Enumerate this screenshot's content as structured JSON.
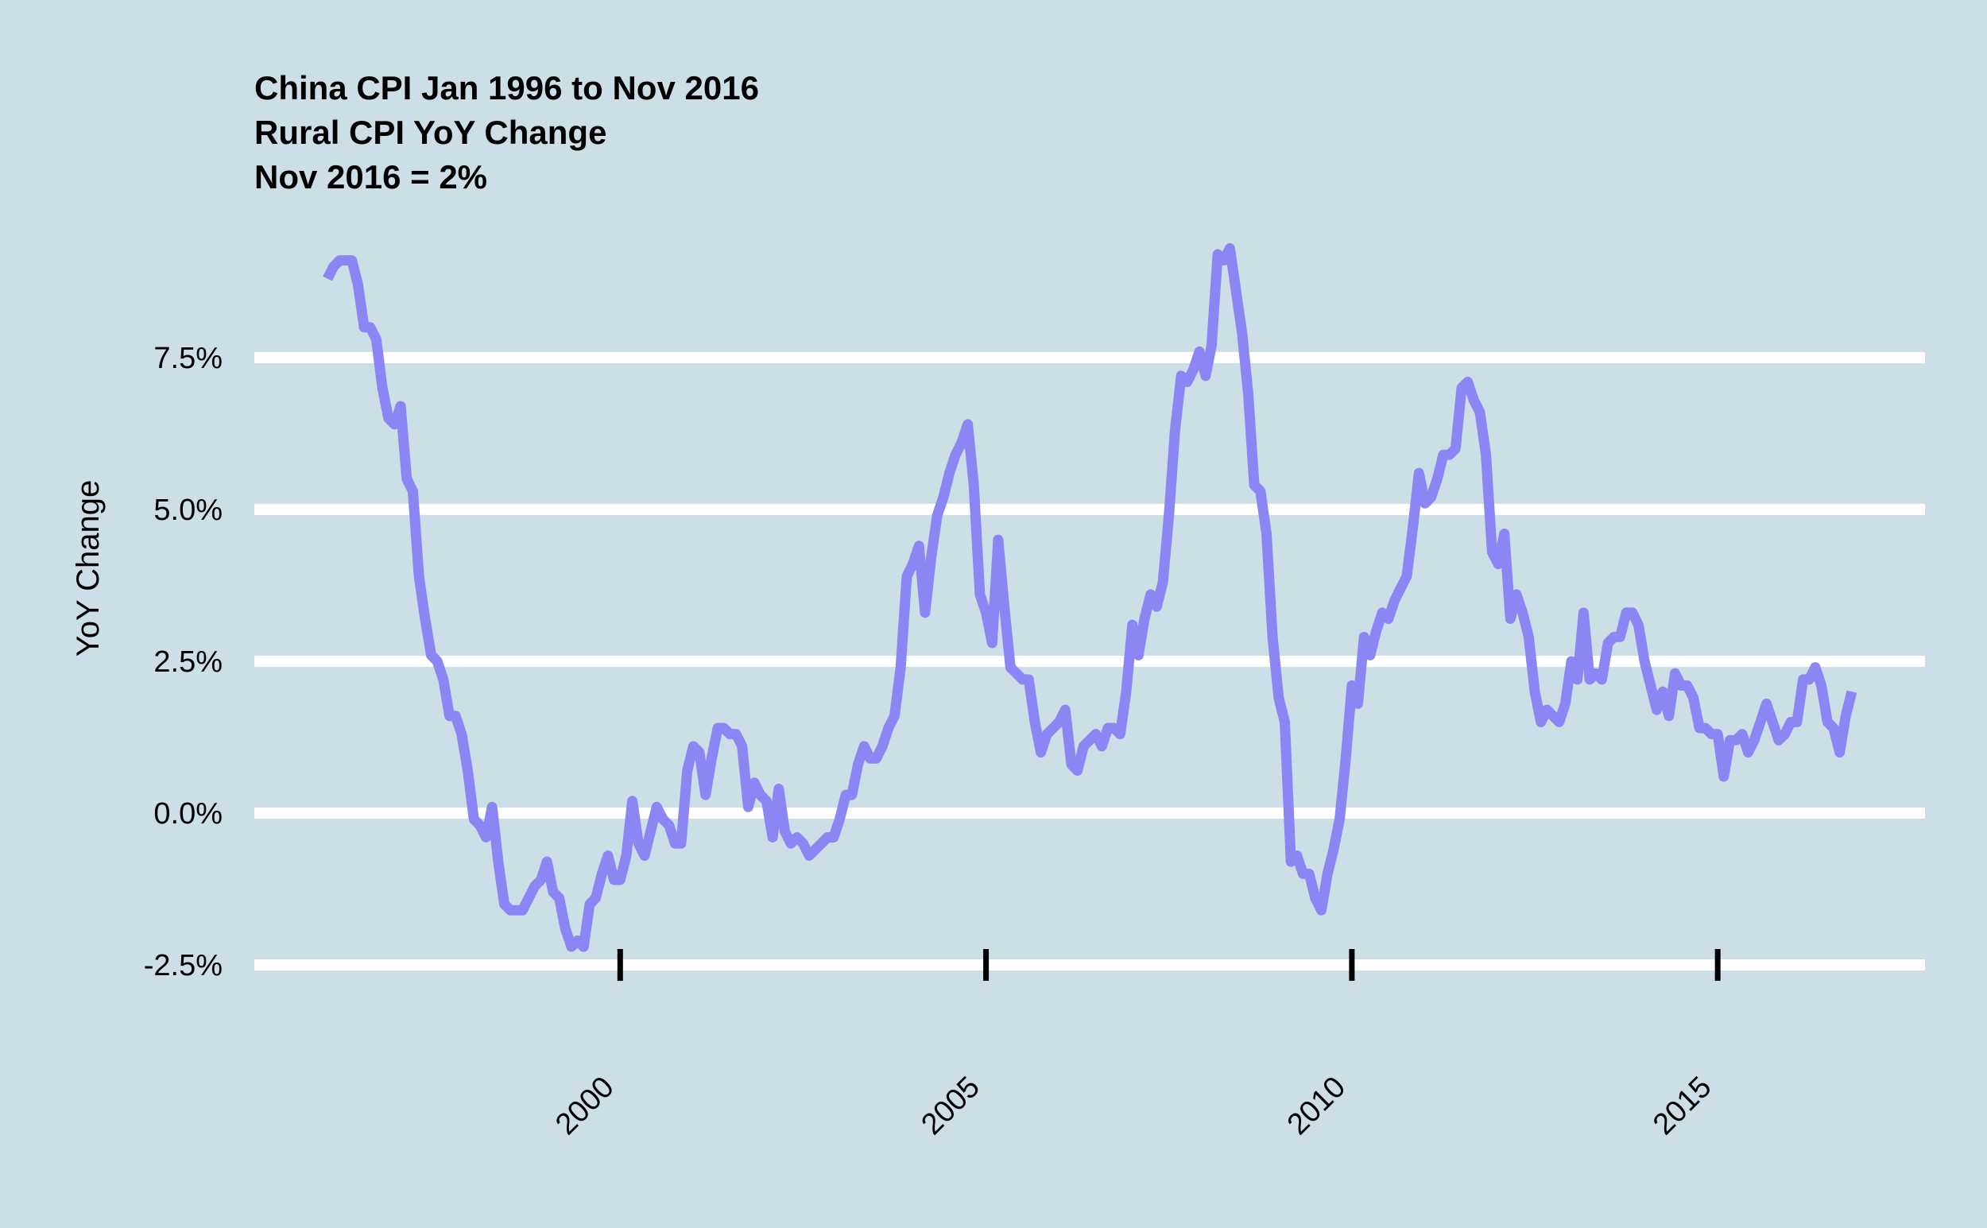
{
  "chart_data": {
    "type": "line",
    "title_lines": [
      "China CPI Jan 1996 to Nov 2016",
      "Rural CPI YoY Change",
      "Nov 2016 = 2%"
    ],
    "xlabel": "",
    "ylabel": "YoY Change",
    "x_ticks": [
      "2000",
      "2005",
      "2010",
      "2015"
    ],
    "y_ticks": [
      "-2.5%",
      "0.0%",
      "2.5%",
      "5.0%",
      "7.5%"
    ],
    "y_tick_values": [
      -2.5,
      0,
      2.5,
      5,
      7.5
    ],
    "xlim": [
      "1995-01",
      "2017-11"
    ],
    "ylim": [
      -2.5,
      9.2
    ],
    "grid": "horizontal",
    "colors": {
      "background": "#cddfe6",
      "line": "#8c86f5",
      "grid": "#ffffff",
      "tick_mark": "#000000"
    },
    "series": [
      {
        "points": [
          [
            "1996-01",
            8.8
          ],
          [
            "1996-02",
            9.0
          ],
          [
            "1996-03",
            9.1
          ],
          [
            "1996-05",
            9.1
          ],
          [
            "1996-06",
            8.7
          ],
          [
            "1996-07",
            8.0
          ],
          [
            "1996-08",
            8.0
          ],
          [
            "1996-09",
            7.8
          ],
          [
            "1996-10",
            7.0
          ],
          [
            "1996-11",
            6.5
          ],
          [
            "1996-12",
            6.4
          ],
          [
            "1997-01",
            6.7
          ],
          [
            "1997-02",
            5.5
          ],
          [
            "1997-03",
            5.3
          ],
          [
            "1997-04",
            3.9
          ],
          [
            "1997-05",
            3.2
          ],
          [
            "1997-06",
            2.6
          ],
          [
            "1997-07",
            2.5
          ],
          [
            "1997-08",
            2.2
          ],
          [
            "1997-09",
            1.6
          ],
          [
            "1997-10",
            1.6
          ],
          [
            "1997-11",
            1.3
          ],
          [
            "1997-12",
            0.7
          ],
          [
            "1998-01",
            -0.1
          ],
          [
            "1998-02",
            -0.2
          ],
          [
            "1998-03",
            -0.4
          ],
          [
            "1998-04",
            0.1
          ],
          [
            "1998-05",
            -0.8
          ],
          [
            "1998-06",
            -1.5
          ],
          [
            "1998-07",
            -1.6
          ],
          [
            "1998-08",
            -1.6
          ],
          [
            "1998-09",
            -1.6
          ],
          [
            "1998-10",
            -1.4
          ],
          [
            "1998-11",
            -1.2
          ],
          [
            "1998-12",
            -1.1
          ],
          [
            "1999-01",
            -0.8
          ],
          [
            "1999-02",
            -1.3
          ],
          [
            "1999-03",
            -1.4
          ],
          [
            "1999-04",
            -1.9
          ],
          [
            "1999-05",
            -2.2
          ],
          [
            "1999-06",
            -2.1
          ],
          [
            "1999-07",
            -2.2
          ],
          [
            "1999-08",
            -1.5
          ],
          [
            "1999-09",
            -1.4
          ],
          [
            "1999-10",
            -1.0
          ],
          [
            "1999-11",
            -0.7
          ],
          [
            "1999-12",
            -1.1
          ],
          [
            "2000-01",
            -1.1
          ],
          [
            "2000-02",
            -0.7
          ],
          [
            "2000-03",
            0.2
          ],
          [
            "2000-04",
            -0.5
          ],
          [
            "2000-05",
            -0.7
          ],
          [
            "2000-06",
            -0.3
          ],
          [
            "2000-07",
            0.1
          ],
          [
            "2000-08",
            -0.1
          ],
          [
            "2000-09",
            -0.2
          ],
          [
            "2000-10",
            -0.5
          ],
          [
            "2000-11",
            -0.5
          ],
          [
            "2000-12",
            0.7
          ],
          [
            "2001-01",
            1.1
          ],
          [
            "2001-02",
            1.0
          ],
          [
            "2001-03",
            0.3
          ],
          [
            "2001-04",
            0.9
          ],
          [
            "2001-05",
            1.4
          ],
          [
            "2001-06",
            1.4
          ],
          [
            "2001-07",
            1.3
          ],
          [
            "2001-08",
            1.3
          ],
          [
            "2001-09",
            1.1
          ],
          [
            "2001-10",
            0.1
          ],
          [
            "2001-11",
            0.5
          ],
          [
            "2001-12",
            0.3
          ],
          [
            "2002-01",
            0.2
          ],
          [
            "2002-02",
            -0.4
          ],
          [
            "2002-03",
            0.4
          ],
          [
            "2002-04",
            -0.3
          ],
          [
            "2002-05",
            -0.5
          ],
          [
            "2002-06",
            -0.4
          ],
          [
            "2002-07",
            -0.5
          ],
          [
            "2002-08",
            -0.7
          ],
          [
            "2002-09",
            -0.6
          ],
          [
            "2002-10",
            -0.5
          ],
          [
            "2002-11",
            -0.4
          ],
          [
            "2002-12",
            -0.4
          ],
          [
            "2003-01",
            -0.1
          ],
          [
            "2003-02",
            0.3
          ],
          [
            "2003-03",
            0.3
          ],
          [
            "2003-04",
            0.8
          ],
          [
            "2003-05",
            1.1
          ],
          [
            "2003-06",
            0.9
          ],
          [
            "2003-07",
            0.9
          ],
          [
            "2003-08",
            1.1
          ],
          [
            "2003-09",
            1.4
          ],
          [
            "2003-10",
            1.6
          ],
          [
            "2003-11",
            2.4
          ],
          [
            "2003-12",
            3.9
          ],
          [
            "2004-01",
            4.1
          ],
          [
            "2004-02",
            4.4
          ],
          [
            "2004-03",
            3.3
          ],
          [
            "2004-04",
            4.2
          ],
          [
            "2004-05",
            4.9
          ],
          [
            "2004-06",
            5.2
          ],
          [
            "2004-07",
            5.6
          ],
          [
            "2004-08",
            5.9
          ],
          [
            "2004-09",
            6.1
          ],
          [
            "2004-10",
            6.4
          ],
          [
            "2004-11",
            5.4
          ],
          [
            "2004-12",
            3.6
          ],
          [
            "2005-01",
            3.3
          ],
          [
            "2005-02",
            2.8
          ],
          [
            "2005-03",
            4.5
          ],
          [
            "2005-04",
            3.4
          ],
          [
            "2005-05",
            2.4
          ],
          [
            "2005-06",
            2.3
          ],
          [
            "2005-07",
            2.2
          ],
          [
            "2005-08",
            2.2
          ],
          [
            "2005-09",
            1.5
          ],
          [
            "2005-10",
            1.0
          ],
          [
            "2005-11",
            1.3
          ],
          [
            "2005-12",
            1.4
          ],
          [
            "2006-01",
            1.5
          ],
          [
            "2006-02",
            1.7
          ],
          [
            "2006-03",
            0.8
          ],
          [
            "2006-04",
            0.7
          ],
          [
            "2006-05",
            1.1
          ],
          [
            "2006-06",
            1.2
          ],
          [
            "2006-07",
            1.3
          ],
          [
            "2006-08",
            1.1
          ],
          [
            "2006-09",
            1.4
          ],
          [
            "2006-10",
            1.4
          ],
          [
            "2006-11",
            1.3
          ],
          [
            "2006-12",
            2.0
          ],
          [
            "2007-01",
            3.1
          ],
          [
            "2007-02",
            2.6
          ],
          [
            "2007-03",
            3.2
          ],
          [
            "2007-04",
            3.6
          ],
          [
            "2007-05",
            3.4
          ],
          [
            "2007-06",
            3.8
          ],
          [
            "2007-07",
            4.9
          ],
          [
            "2007-08",
            6.3
          ],
          [
            "2007-09",
            7.2
          ],
          [
            "2007-10",
            7.1
          ],
          [
            "2007-11",
            7.3
          ],
          [
            "2007-12",
            7.6
          ],
          [
            "2008-01",
            7.2
          ],
          [
            "2008-02",
            7.7
          ],
          [
            "2008-03",
            9.2
          ],
          [
            "2008-04",
            9.1
          ],
          [
            "2008-05",
            9.3
          ],
          [
            "2008-06",
            8.6
          ],
          [
            "2008-07",
            7.9
          ],
          [
            "2008-08",
            6.9
          ],
          [
            "2008-09",
            5.4
          ],
          [
            "2008-10",
            5.3
          ],
          [
            "2008-11",
            4.6
          ],
          [
            "2008-12",
            2.9
          ],
          [
            "2009-01",
            1.9
          ],
          [
            "2009-02",
            1.5
          ],
          [
            "2009-03",
            -0.8
          ],
          [
            "2009-04",
            -0.7
          ],
          [
            "2009-05",
            -1.0
          ],
          [
            "2009-06",
            -1.0
          ],
          [
            "2009-07",
            -1.4
          ],
          [
            "2009-08",
            -1.6
          ],
          [
            "2009-09",
            -1.0
          ],
          [
            "2009-10",
            -0.6
          ],
          [
            "2009-11",
            -0.1
          ],
          [
            "2009-12",
            0.9
          ],
          [
            "2010-01",
            2.1
          ],
          [
            "2010-02",
            1.8
          ],
          [
            "2010-03",
            2.9
          ],
          [
            "2010-04",
            2.6
          ],
          [
            "2010-05",
            3.0
          ],
          [
            "2010-06",
            3.3
          ],
          [
            "2010-07",
            3.2
          ],
          [
            "2010-08",
            3.5
          ],
          [
            "2010-09",
            3.7
          ],
          [
            "2010-10",
            3.9
          ],
          [
            "2010-11",
            4.7
          ],
          [
            "2010-12",
            5.6
          ],
          [
            "2011-01",
            5.1
          ],
          [
            "2011-02",
            5.2
          ],
          [
            "2011-03",
            5.5
          ],
          [
            "2011-04",
            5.9
          ],
          [
            "2011-05",
            5.9
          ],
          [
            "2011-06",
            6.0
          ],
          [
            "2011-07",
            7.0
          ],
          [
            "2011-08",
            7.1
          ],
          [
            "2011-09",
            6.8
          ],
          [
            "2011-10",
            6.6
          ],
          [
            "2011-11",
            5.9
          ],
          [
            "2011-12",
            4.3
          ],
          [
            "2012-01",
            4.1
          ],
          [
            "2012-02",
            4.6
          ],
          [
            "2012-03",
            3.2
          ],
          [
            "2012-04",
            3.6
          ],
          [
            "2012-05",
            3.3
          ],
          [
            "2012-06",
            2.9
          ],
          [
            "2012-07",
            2.0
          ],
          [
            "2012-08",
            1.5
          ],
          [
            "2012-09",
            1.7
          ],
          [
            "2012-10",
            1.6
          ],
          [
            "2012-11",
            1.5
          ],
          [
            "2012-12",
            1.8
          ],
          [
            "2013-01",
            2.5
          ],
          [
            "2013-02",
            2.2
          ],
          [
            "2013-03",
            3.3
          ],
          [
            "2013-04",
            2.2
          ],
          [
            "2013-05",
            2.3
          ],
          [
            "2013-06",
            2.2
          ],
          [
            "2013-07",
            2.8
          ],
          [
            "2013-08",
            2.9
          ],
          [
            "2013-09",
            2.9
          ],
          [
            "2013-10",
            3.3
          ],
          [
            "2013-11",
            3.3
          ],
          [
            "2013-12",
            3.1
          ],
          [
            "2014-01",
            2.5
          ],
          [
            "2014-02",
            2.1
          ],
          [
            "2014-03",
            1.7
          ],
          [
            "2014-04",
            2.0
          ],
          [
            "2014-05",
            1.6
          ],
          [
            "2014-06",
            2.3
          ],
          [
            "2014-07",
            2.1
          ],
          [
            "2014-08",
            2.1
          ],
          [
            "2014-09",
            1.9
          ],
          [
            "2014-10",
            1.4
          ],
          [
            "2014-11",
            1.4
          ],
          [
            "2014-12",
            1.3
          ],
          [
            "2015-01",
            1.3
          ],
          [
            "2015-02",
            0.6
          ],
          [
            "2015-03",
            1.2
          ],
          [
            "2015-04",
            1.2
          ],
          [
            "2015-05",
            1.3
          ],
          [
            "2015-06",
            1.0
          ],
          [
            "2015-07",
            1.2
          ],
          [
            "2015-08",
            1.5
          ],
          [
            "2015-09",
            1.8
          ],
          [
            "2015-10",
            1.5
          ],
          [
            "2015-11",
            1.2
          ],
          [
            "2015-12",
            1.3
          ],
          [
            "2016-01",
            1.5
          ],
          [
            "2016-02",
            1.5
          ],
          [
            "2016-03",
            2.2
          ],
          [
            "2016-04",
            2.2
          ],
          [
            "2016-05",
            2.4
          ],
          [
            "2016-06",
            2.1
          ],
          [
            "2016-07",
            1.5
          ],
          [
            "2016-08",
            1.4
          ],
          [
            "2016-09",
            1.0
          ],
          [
            "2016-10",
            1.6
          ],
          [
            "2016-11",
            2.0
          ]
        ]
      }
    ]
  }
}
